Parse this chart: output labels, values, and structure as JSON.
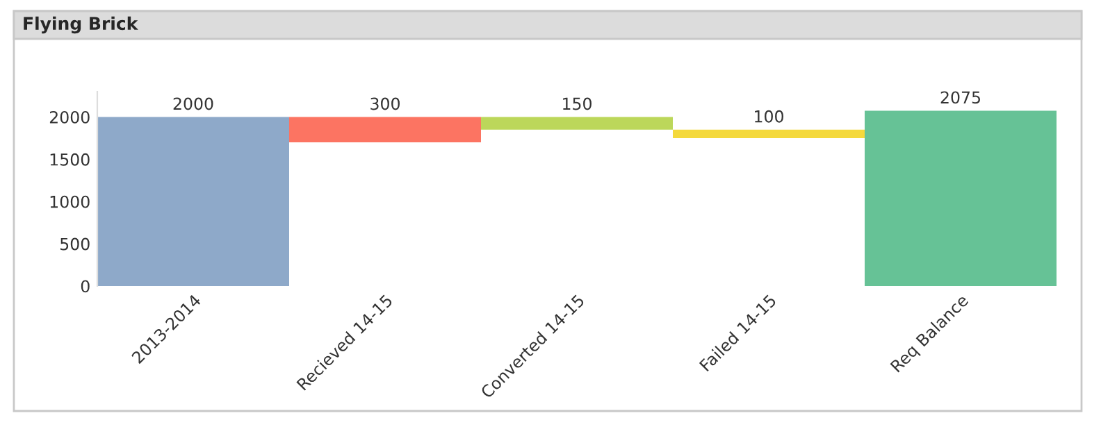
{
  "chart_data": {
    "type": "bar",
    "title": "Flying Brick",
    "categories": [
      "2013-2014",
      "Recieved 14-15",
      "Converted 14-15",
      "Failed 14-15",
      "Req Balance"
    ],
    "values": [
      2000,
      300,
      150,
      100,
      2075
    ],
    "base": [
      0,
      1700,
      1850,
      1750,
      0
    ],
    "colors": [
      "#8ea9c9",
      "#fc7462",
      "#bcd75a",
      "#f4d93c",
      "#66c296"
    ],
    "data_labels": true,
    "ylim": [
      0,
      2300
    ],
    "yticks": [
      0,
      500,
      1000,
      1500,
      2000
    ],
    "grid": false,
    "legend": false
  }
}
